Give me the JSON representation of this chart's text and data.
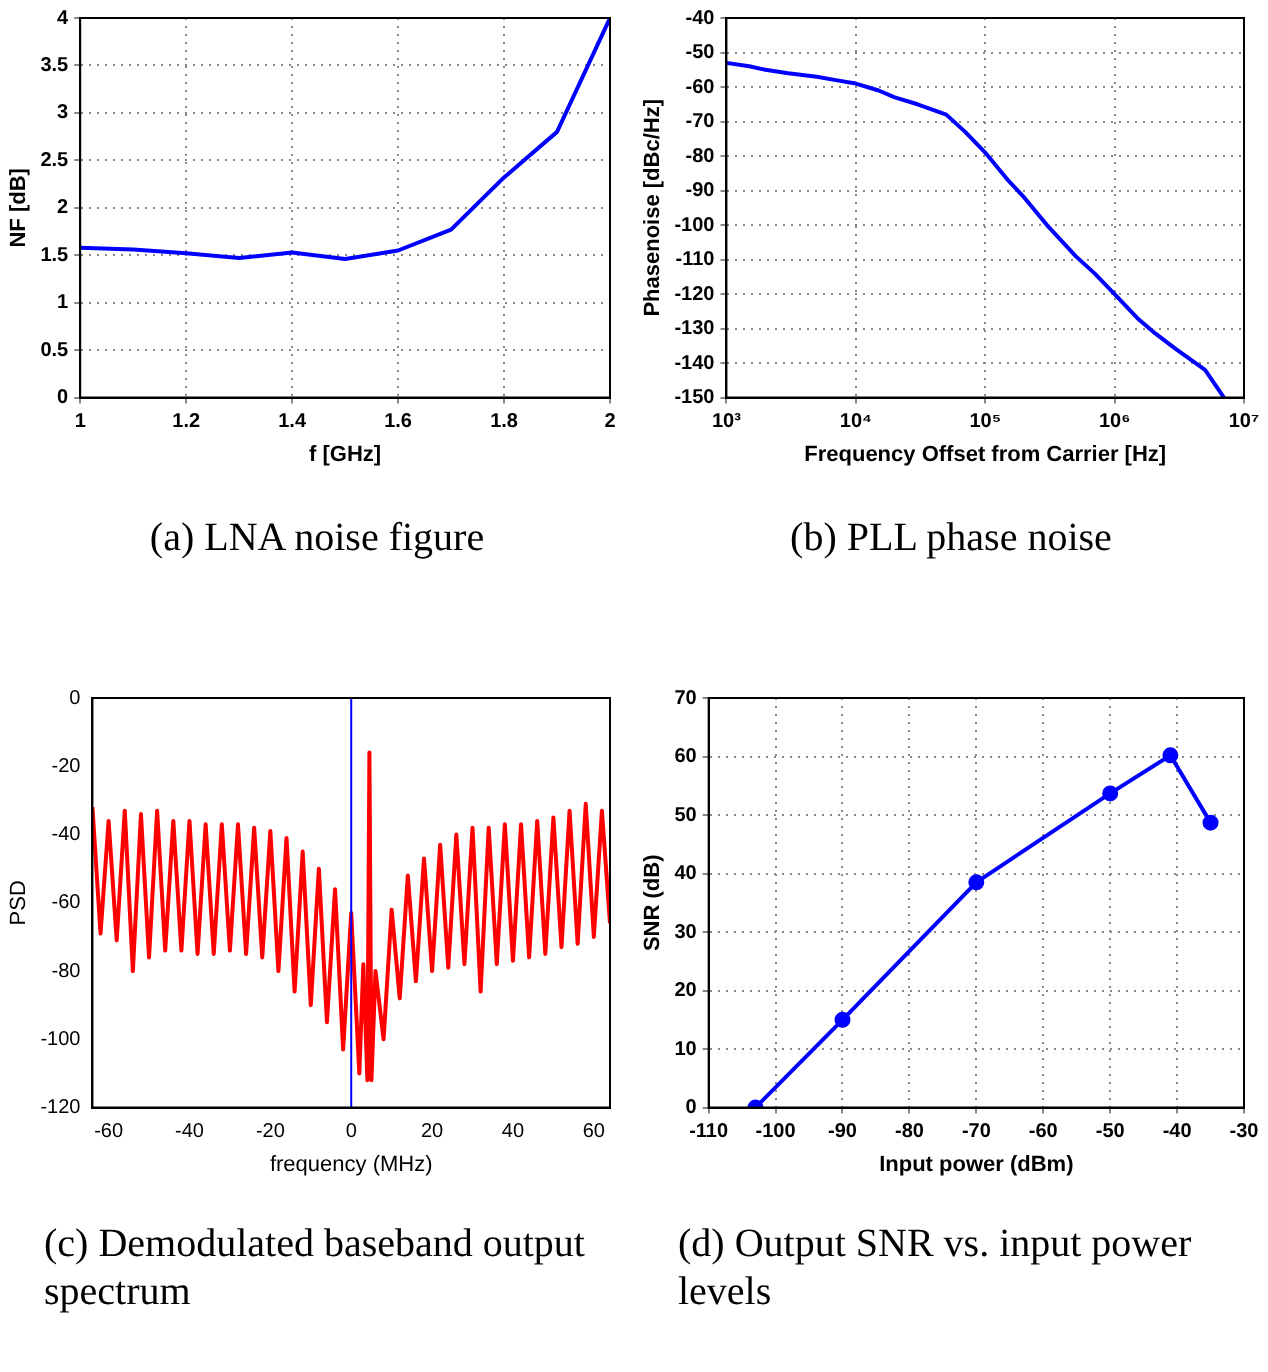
{
  "chart_data": [
    {
      "type": "line",
      "xlabel": "f [GHz]",
      "ylabel": "NF [dB]",
      "annotations": [
        "(a) LNA noise figure"
      ],
      "x": [
        1,
        1.1,
        1.2,
        1.3,
        1.4,
        1.5,
        1.6,
        1.7,
        1.8,
        1.9,
        2
      ],
      "series": [
        {
          "color": "#0000ff",
          "values": [
            1.58,
            1.56,
            1.52,
            1.47,
            1.53,
            1.46,
            1.55,
            1.77,
            2.32,
            2.8,
            4.0
          ]
        }
      ],
      "xlim": [
        1,
        2
      ],
      "xticks": [
        1,
        1.2,
        1.4,
        1.6,
        1.8,
        2
      ],
      "ylim": [
        0,
        4
      ],
      "yticks": [
        0,
        0.5,
        1,
        1.5,
        2,
        2.5,
        3,
        3.5,
        4
      ],
      "grid": true,
      "legend": false
    },
    {
      "type": "line",
      "xlabel": "Frequency Offset from Carrier [Hz]",
      "ylabel": "Phasenoise [dBc/Hz]",
      "annotations": [
        "(b) PLL phase noise"
      ],
      "log": "x",
      "x": [
        1000,
        1500,
        2000,
        3000,
        5000,
        7000,
        10000,
        15000,
        20000,
        30000,
        50000,
        70000,
        100000,
        150000,
        200000,
        300000,
        500000,
        700000,
        1000000,
        1500000,
        2000000,
        3000000,
        5000000,
        7000000
      ],
      "series": [
        {
          "color": "#0000ff",
          "values": [
            -53,
            -54,
            -55,
            -56,
            -57,
            -58,
            -59,
            -61,
            -63,
            -65,
            -68,
            -73,
            -79,
            -87,
            -92,
            -100,
            -109,
            -114,
            -120,
            -127,
            -131,
            -136,
            -142,
            -150
          ]
        }
      ],
      "xlim": [
        1000,
        10000000
      ],
      "xticks": [
        {
          "value": 1000,
          "label": "10³"
        },
        {
          "value": 10000,
          "label": "10⁴"
        },
        {
          "value": 100000,
          "label": "10⁵"
        },
        {
          "value": 1000000,
          "label": "10⁶"
        },
        {
          "value": 10000000,
          "label": "10⁷"
        }
      ],
      "ylim": [
        -150,
        -40
      ],
      "yticks": [
        -150,
        -140,
        -130,
        -120,
        -110,
        -100,
        -90,
        -80,
        -70,
        -60,
        -50,
        -40
      ],
      "grid": true,
      "legend": false
    },
    {
      "type": "line",
      "xlabel": "frequency (MHz)",
      "ylabel": "PSD",
      "annotations": [
        "(c) Demodulated baseband output spectrum"
      ],
      "x": [
        -64,
        -62,
        -60,
        -58,
        -56,
        -54,
        -52,
        -50,
        -48,
        -46,
        -44,
        -42,
        -40,
        -38,
        -36,
        -34,
        -32,
        -30,
        -28,
        -26,
        -24,
        -22,
        -20,
        -18,
        -16,
        -14,
        -12,
        -10,
        -8,
        -6,
        -4,
        -2,
        0,
        2,
        3,
        4,
        4.5,
        5,
        6,
        8,
        10,
        12,
        14,
        16,
        18,
        20,
        22,
        24,
        26,
        28,
        30,
        32,
        34,
        36,
        38,
        40,
        42,
        44,
        46,
        48,
        50,
        52,
        54,
        56,
        58,
        60,
        62,
        64
      ],
      "series": [
        {
          "color": "#ff0000",
          "values": [
            -32,
            -69,
            -36,
            -71,
            -33,
            -80,
            -34,
            -76,
            -33,
            -74,
            -36,
            -74,
            -36,
            -75,
            -37,
            -75,
            -37,
            -74,
            -37,
            -75,
            -38,
            -76,
            -39,
            -80,
            -41,
            -86,
            -45,
            -90,
            -50,
            -95,
            -56,
            -103,
            -63,
            -110,
            -78,
            -112,
            -16,
            -112,
            -80,
            -100,
            -62,
            -88,
            -52,
            -83,
            -47,
            -80,
            -43,
            -79,
            -40,
            -78,
            -38,
            -86,
            -38,
            -78,
            -37,
            -77,
            -37,
            -76,
            -36,
            -75,
            -35,
            -73,
            -33,
            -72,
            -31,
            -70,
            -33,
            -66
          ]
        }
      ],
      "ref_lines": [
        {
          "axis": "x",
          "value": 0,
          "color": "#0000ff"
        }
      ],
      "xlim": [
        -64,
        64
      ],
      "xticks": [
        -60,
        -40,
        -20,
        0,
        20,
        40,
        60
      ],
      "ylim": [
        -120,
        0
      ],
      "yticks": [
        -120,
        -100,
        -80,
        -60,
        -40,
        -20,
        0
      ],
      "grid": false,
      "legend": false
    },
    {
      "type": "line",
      "xlabel": "Input power (dBm)",
      "ylabel": "SNR (dB)",
      "annotations": [
        "(d) Output SNR vs. input power levels"
      ],
      "marker": "circle",
      "x": [
        -103,
        -90,
        -70,
        -50,
        -41,
        -35
      ],
      "series": [
        {
          "color": "#0000ff",
          "values": [
            0,
            15,
            38.5,
            53.7,
            60.2,
            48.7
          ]
        }
      ],
      "xlim": [
        -110,
        -30
      ],
      "xticks": [
        -110,
        -100,
        -90,
        -80,
        -70,
        -60,
        -50,
        -40,
        -30
      ],
      "ylim": [
        0,
        70
      ],
      "yticks": [
        0,
        10,
        20,
        30,
        40,
        50,
        60,
        70
      ],
      "grid": true,
      "legend": false
    }
  ]
}
